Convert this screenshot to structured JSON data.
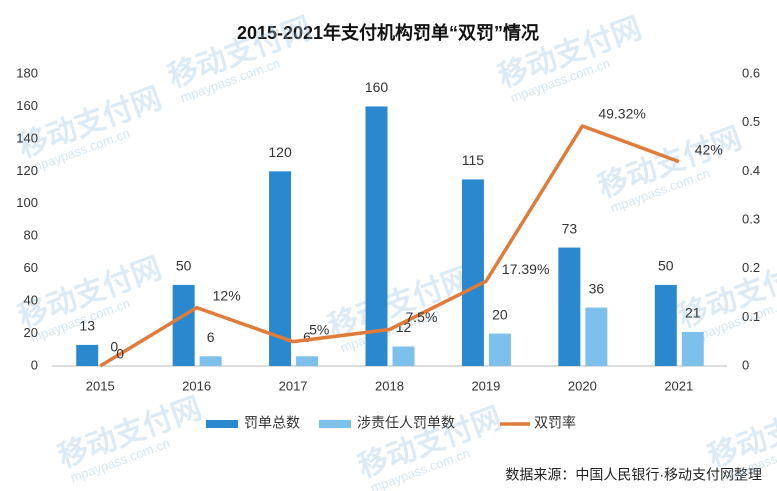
{
  "chart_data": {
    "type": "bar_line",
    "title": "2015-2021年支付机构罚单“双罚”情况",
    "categories": [
      "2015",
      "2016",
      "2017",
      "2018",
      "2019",
      "2020",
      "2021"
    ],
    "series": [
      {
        "name": "罚单总数",
        "type": "bar",
        "color": "#2a88cf",
        "values": [
          13,
          50,
          120,
          160,
          115,
          73,
          50
        ]
      },
      {
        "name": "涉责任人罚单数",
        "type": "bar",
        "color": "#7dc0ec",
        "values": [
          0,
          6,
          6,
          12,
          20,
          36,
          21
        ]
      },
      {
        "name": "双罚率",
        "type": "line",
        "axis": "y2",
        "color": "#e07b39",
        "values": [
          0,
          0.12,
          0.05,
          0.075,
          0.1739,
          0.4932,
          0.42
        ],
        "value_labels": [
          "0",
          "12%",
          "5%",
          "7.5%",
          "17.39%",
          "49.32%",
          "42%"
        ]
      }
    ],
    "ylim": [
      0,
      180
    ],
    "yticks": [
      0,
      20,
      40,
      60,
      80,
      100,
      120,
      140,
      160,
      180
    ],
    "y2lim": [
      0,
      0.6
    ],
    "y2ticks": [
      0,
      0.1,
      0.2,
      0.3,
      0.4,
      0.5,
      0.6
    ],
    "grid": false,
    "legend": "bottom",
    "source": "数据来源：中国人民银行·移动支付网整理",
    "watermark": {
      "text": "移动支付网",
      "url": "mpaypass.com.cn"
    }
  }
}
